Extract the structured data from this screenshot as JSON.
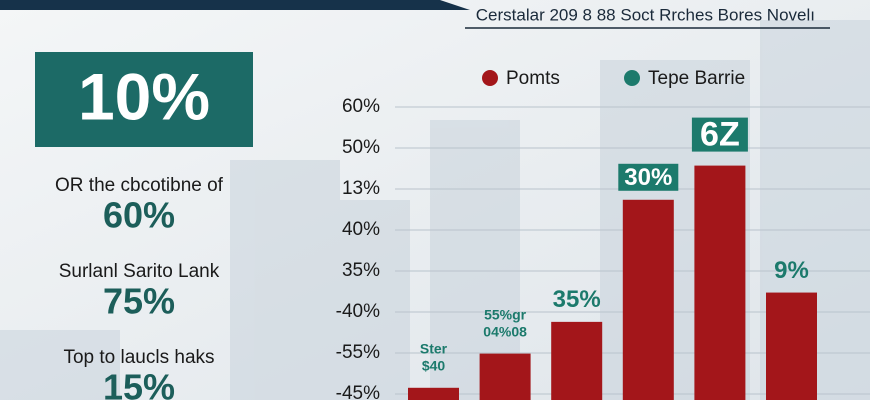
{
  "header": {
    "title": "Cerstalar 209 8 88 Soct Rrches Bores Novelı"
  },
  "panel": {
    "highlight": "10%",
    "items": [
      {
        "label": "OR the cbcotibne of",
        "value": "60%"
      },
      {
        "label": "Surlanl Sarito Lank",
        "value": "75%"
      },
      {
        "label": "Top to laucls haks",
        "value": "15%"
      }
    ]
  },
  "chart_data": {
    "type": "bar",
    "legend": [
      {
        "name": "Pomts",
        "color": "#a3161a"
      },
      {
        "name": "Tepe Barrie",
        "color": "#1c7a6c"
      }
    ],
    "y_axis_labels": [
      "60%",
      "50%",
      "13%",
      "40%",
      "35%",
      "-40%",
      "-55%",
      "-45%"
    ],
    "ylim": [
      0,
      60
    ],
    "color": "#a3161a",
    "values": [
      2.5,
      9.5,
      16,
      41,
      48,
      22
    ],
    "annotations": [
      [
        "Ster",
        "$40"
      ],
      [
        "55%gr",
        "04%08"
      ],
      [
        "35%"
      ],
      [
        "30%"
      ],
      [
        "6Z"
      ],
      [
        "9%"
      ]
    ]
  }
}
